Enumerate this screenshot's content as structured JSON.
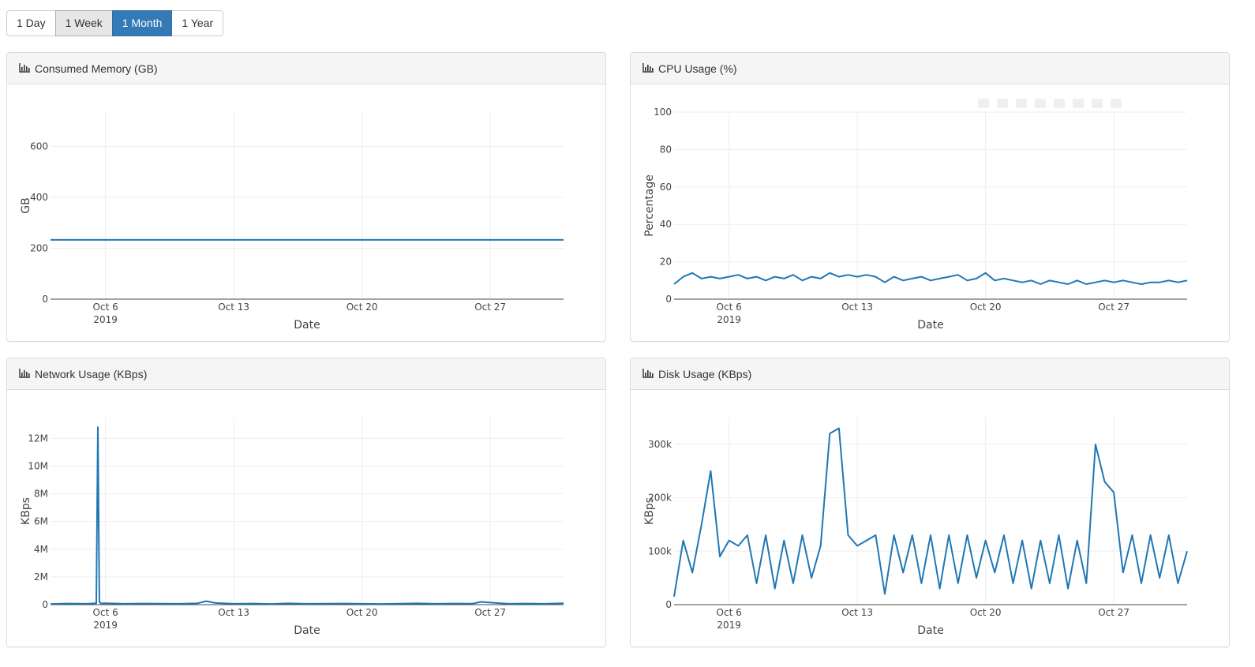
{
  "range_buttons": [
    {
      "label": "1 Day"
    },
    {
      "label": "1 Week"
    },
    {
      "label": "1 Month"
    },
    {
      "label": "1 Year"
    }
  ],
  "selected_range": "1 Month",
  "colors": {
    "accent": "#337ab7",
    "trace": "#1f77b4"
  },
  "panel_icon": "bar-chart-icon",
  "chart_data": [
    {
      "type": "line",
      "panel_title": "Consumed Memory (GB)",
      "xlabel": "Date",
      "ylabel": "GB",
      "xlim": [
        "2019-10-03",
        "2019-10-31"
      ],
      "ylim": [
        0,
        735
      ],
      "yticks": [
        0,
        200,
        400,
        600
      ],
      "ytick_labels": [
        "0",
        "200",
        "400",
        "600"
      ],
      "xticks": [
        {
          "date": "2019-10-06",
          "label": "Oct 6",
          "sub": "2019"
        },
        {
          "date": "2019-10-13",
          "label": "Oct 13",
          "sub": ""
        },
        {
          "date": "2019-10-20",
          "label": "Oct 20",
          "sub": ""
        },
        {
          "date": "2019-10-27",
          "label": "Oct 27",
          "sub": ""
        }
      ],
      "grid": true,
      "x": [
        "2019-10-03",
        "2019-10-31"
      ],
      "y": [
        233,
        233
      ]
    },
    {
      "type": "line",
      "panel_title": "CPU Usage (%)",
      "xlabel": "Date",
      "ylabel": "Percentage",
      "xlim": [
        "2019-10-03",
        "2019-10-31"
      ],
      "ylim": [
        0,
        100
      ],
      "yticks": [
        0,
        20,
        40,
        60,
        80,
        100
      ],
      "ytick_labels": [
        "0",
        "20",
        "40",
        "60",
        "80",
        "100"
      ],
      "xticks": [
        {
          "date": "2019-10-06",
          "label": "Oct 6",
          "sub": "2019"
        },
        {
          "date": "2019-10-13",
          "label": "Oct 13",
          "sub": ""
        },
        {
          "date": "2019-10-20",
          "label": "Oct 20",
          "sub": ""
        },
        {
          "date": "2019-10-27",
          "label": "Oct 27",
          "sub": ""
        }
      ],
      "grid": true,
      "x": [
        "2019-10-03",
        "2019-10-03 12:00",
        "2019-10-04",
        "2019-10-04 12:00",
        "2019-10-05",
        "2019-10-05 12:00",
        "2019-10-06",
        "2019-10-06 12:00",
        "2019-10-07",
        "2019-10-07 12:00",
        "2019-10-08",
        "2019-10-08 12:00",
        "2019-10-09",
        "2019-10-09 12:00",
        "2019-10-10",
        "2019-10-10 12:00",
        "2019-10-11",
        "2019-10-11 12:00",
        "2019-10-12",
        "2019-10-12 12:00",
        "2019-10-13",
        "2019-10-13 12:00",
        "2019-10-14",
        "2019-10-14 12:00",
        "2019-10-15",
        "2019-10-15 12:00",
        "2019-10-16",
        "2019-10-16 12:00",
        "2019-10-17",
        "2019-10-17 12:00",
        "2019-10-18",
        "2019-10-18 12:00",
        "2019-10-19",
        "2019-10-19 12:00",
        "2019-10-20",
        "2019-10-20 12:00",
        "2019-10-21",
        "2019-10-21 12:00",
        "2019-10-22",
        "2019-10-22 12:00",
        "2019-10-23",
        "2019-10-23 12:00",
        "2019-10-24",
        "2019-10-24 12:00",
        "2019-10-25",
        "2019-10-25 12:00",
        "2019-10-26",
        "2019-10-26 12:00",
        "2019-10-27",
        "2019-10-27 12:00",
        "2019-10-28",
        "2019-10-28 12:00",
        "2019-10-29",
        "2019-10-29 12:00",
        "2019-10-30",
        "2019-10-30 12:00",
        "2019-10-31"
      ],
      "y": [
        8,
        12,
        14,
        11,
        12,
        11,
        12,
        13,
        11,
        12,
        10,
        12,
        11,
        13,
        10,
        12,
        11,
        14,
        12,
        13,
        12,
        13,
        12,
        9,
        12,
        10,
        11,
        12,
        10,
        11,
        12,
        13,
        10,
        11,
        14,
        10,
        11,
        10,
        9,
        10,
        8,
        10,
        9,
        8,
        10,
        8,
        9,
        10,
        9,
        10,
        9,
        8,
        9,
        9,
        10,
        9,
        10
      ]
    },
    {
      "type": "line",
      "panel_title": "Network Usage (KBps)",
      "xlabel": "Date",
      "ylabel": "KBps",
      "xlim": [
        "2019-10-03",
        "2019-10-31"
      ],
      "ylim": [
        0,
        13500000
      ],
      "yticks": [
        0,
        2000000,
        4000000,
        6000000,
        8000000,
        10000000,
        12000000
      ],
      "ytick_labels": [
        "0",
        "2M",
        "4M",
        "6M",
        "8M",
        "10M",
        "12M"
      ],
      "xticks": [
        {
          "date": "2019-10-06",
          "label": "Oct 6",
          "sub": "2019"
        },
        {
          "date": "2019-10-13",
          "label": "Oct 13",
          "sub": ""
        },
        {
          "date": "2019-10-20",
          "label": "Oct 20",
          "sub": ""
        },
        {
          "date": "2019-10-27",
          "label": "Oct 27",
          "sub": ""
        }
      ],
      "grid": true,
      "x": [
        "2019-10-03",
        "2019-10-04",
        "2019-10-05",
        "2019-10-05 12:00",
        "2019-10-05 14:00",
        "2019-10-05 16:00",
        "2019-10-05 18:00",
        "2019-10-06",
        "2019-10-07",
        "2019-10-08",
        "2019-10-09",
        "2019-10-10",
        "2019-10-11",
        "2019-10-11 12:00",
        "2019-10-12",
        "2019-10-13",
        "2019-10-14",
        "2019-10-15",
        "2019-10-16",
        "2019-10-17",
        "2019-10-18",
        "2019-10-19",
        "2019-10-20",
        "2019-10-21",
        "2019-10-22",
        "2019-10-23",
        "2019-10-24",
        "2019-10-25",
        "2019-10-26",
        "2019-10-26 12:00",
        "2019-10-27",
        "2019-10-28",
        "2019-10-29",
        "2019-10-30",
        "2019-10-31"
      ],
      "y": [
        50000,
        80000,
        60000,
        100000,
        12800000,
        200000,
        90000,
        100000,
        60000,
        80000,
        70000,
        60000,
        90000,
        250000,
        120000,
        60000,
        80000,
        50000,
        90000,
        60000,
        70000,
        80000,
        60000,
        50000,
        70000,
        90000,
        60000,
        80000,
        70000,
        200000,
        150000,
        60000,
        80000,
        60000,
        100000
      ]
    },
    {
      "type": "line",
      "panel_title": "Disk Usage (KBps)",
      "xlabel": "Date",
      "ylabel": "KBps",
      "xlim": [
        "2019-10-03",
        "2019-10-31"
      ],
      "ylim": [
        0,
        350000
      ],
      "yticks": [
        0,
        100000,
        200000,
        300000
      ],
      "ytick_labels": [
        "0",
        "100k",
        "200k",
        "300k"
      ],
      "xticks": [
        {
          "date": "2019-10-06",
          "label": "Oct 6",
          "sub": "2019"
        },
        {
          "date": "2019-10-13",
          "label": "Oct 13",
          "sub": ""
        },
        {
          "date": "2019-10-20",
          "label": "Oct 20",
          "sub": ""
        },
        {
          "date": "2019-10-27",
          "label": "Oct 27",
          "sub": ""
        }
      ],
      "grid": true,
      "x": [
        "2019-10-03",
        "2019-10-03 12:00",
        "2019-10-04",
        "2019-10-04 12:00",
        "2019-10-05",
        "2019-10-05 12:00",
        "2019-10-06",
        "2019-10-06 12:00",
        "2019-10-07",
        "2019-10-07 12:00",
        "2019-10-08",
        "2019-10-08 12:00",
        "2019-10-09",
        "2019-10-09 12:00",
        "2019-10-10",
        "2019-10-10 12:00",
        "2019-10-11",
        "2019-10-11 12:00",
        "2019-10-12",
        "2019-10-12 12:00",
        "2019-10-13",
        "2019-10-13 12:00",
        "2019-10-14",
        "2019-10-14 12:00",
        "2019-10-15",
        "2019-10-15 12:00",
        "2019-10-16",
        "2019-10-16 12:00",
        "2019-10-17",
        "2019-10-17 12:00",
        "2019-10-18",
        "2019-10-18 12:00",
        "2019-10-19",
        "2019-10-19 12:00",
        "2019-10-20",
        "2019-10-20 12:00",
        "2019-10-21",
        "2019-10-21 12:00",
        "2019-10-22",
        "2019-10-22 12:00",
        "2019-10-23",
        "2019-10-23 12:00",
        "2019-10-24",
        "2019-10-24 12:00",
        "2019-10-25",
        "2019-10-25 12:00",
        "2019-10-26",
        "2019-10-26 12:00",
        "2019-10-27",
        "2019-10-27 12:00",
        "2019-10-28",
        "2019-10-28 12:00",
        "2019-10-29",
        "2019-10-29 12:00",
        "2019-10-30",
        "2019-10-30 12:00",
        "2019-10-31"
      ],
      "y": [
        15000,
        120000,
        60000,
        150000,
        250000,
        90000,
        120000,
        110000,
        130000,
        40000,
        130000,
        30000,
        120000,
        40000,
        130000,
        50000,
        110000,
        320000,
        330000,
        130000,
        110000,
        120000,
        130000,
        20000,
        130000,
        60000,
        130000,
        40000,
        130000,
        30000,
        130000,
        40000,
        130000,
        50000,
        120000,
        60000,
        130000,
        40000,
        120000,
        30000,
        120000,
        40000,
        130000,
        30000,
        120000,
        40000,
        300000,
        230000,
        210000,
        60000,
        130000,
        40000,
        130000,
        50000,
        130000,
        40000,
        100000
      ]
    }
  ]
}
